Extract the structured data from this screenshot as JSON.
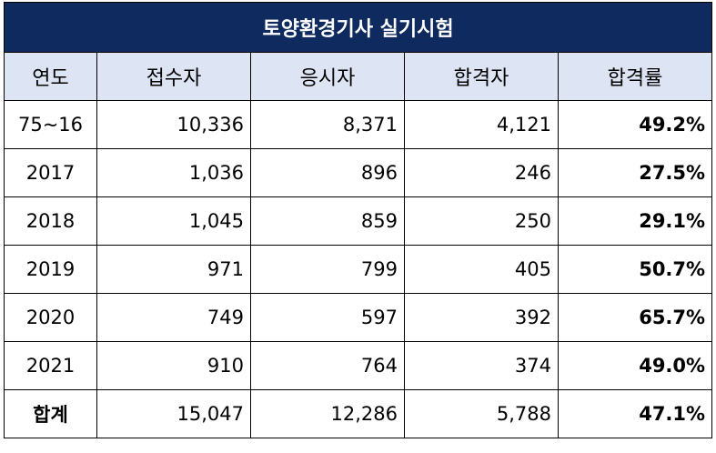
{
  "chart_data": {
    "type": "table",
    "title": "토양환경기사 실기시험",
    "columns": [
      "연도",
      "접수자",
      "응시자",
      "합격자",
      "합격률"
    ],
    "rows": [
      [
        "75~16",
        "10,336",
        "8,371",
        "4,121",
        "49.2%"
      ],
      [
        "2017",
        "1,036",
        "896",
        "246",
        "27.5%"
      ],
      [
        "2018",
        "1,045",
        "859",
        "250",
        "29.1%"
      ],
      [
        "2019",
        "971",
        "799",
        "405",
        "50.7%"
      ],
      [
        "2020",
        "749",
        "597",
        "392",
        "65.7%"
      ],
      [
        "2021",
        "910",
        "764",
        "374",
        "49.0%"
      ],
      [
        "합계",
        "15,047",
        "12,286",
        "5,788",
        "47.1%"
      ]
    ]
  },
  "colors": {
    "title_background": "#0e2a5e",
    "header_background": "#dde4f3"
  }
}
